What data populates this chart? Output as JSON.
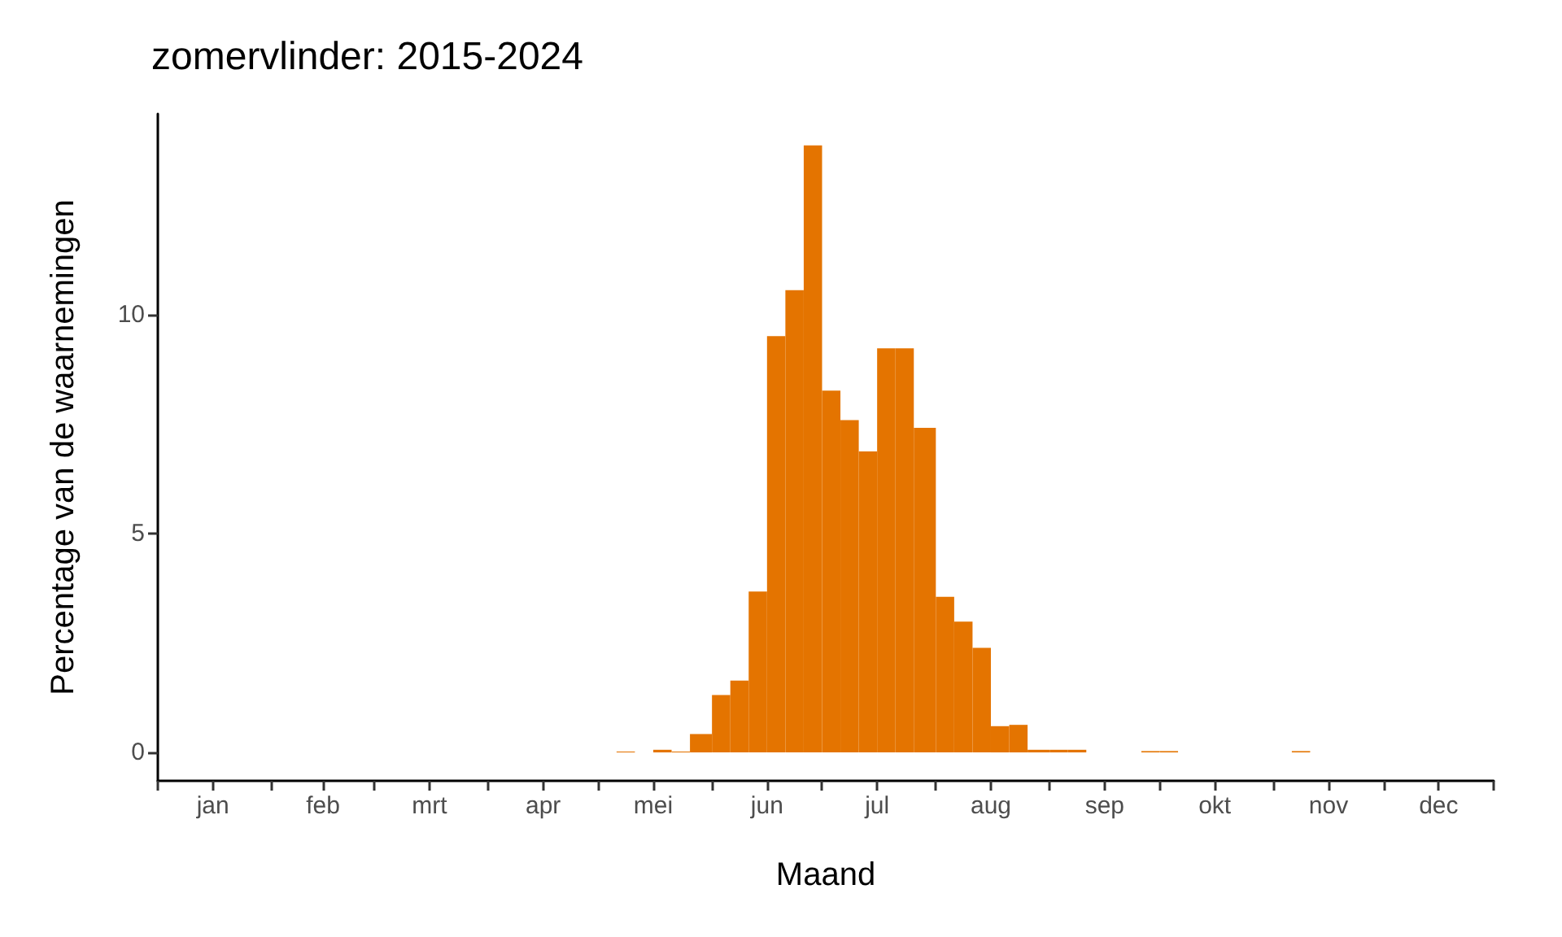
{
  "chart_data": {
    "type": "histogram",
    "title": "zomervlinder: 2015-2024",
    "xlabel": "Maand",
    "ylabel": "Percentage van de waarnemingen",
    "bins": [
      "--05-06",
      "--05-11",
      "--05-16",
      "--05-21",
      "--05-26",
      "--06-01",
      "--06-06",
      "--06-11",
      "--06-16",
      "--06-21",
      "--06-26",
      "--07-01",
      "--07-06",
      "--07-11",
      "--07-16",
      "--07-21",
      "--07-26",
      "--08-01",
      "--08-06",
      "--08-11",
      "--08-16",
      "--08-21",
      "--08-26",
      "--09-01",
      "--09-06",
      "--09-11",
      "--09-26",
      "--10-01",
      "--10-06",
      "--11-06",
      "--11-11"
    ],
    "values": [
      0.02,
      0,
      0.06,
      0.02,
      0.42,
      1.31,
      1.64,
      3.68,
      9.52,
      10.57,
      13.88,
      8.27,
      7.6,
      6.88,
      9.24,
      9.24,
      7.42,
      3.56,
      2.99,
      2.39,
      0.6,
      0.63,
      0.06,
      0.06,
      0.06,
      0,
      0.03,
      0.03,
      0,
      0.03
    ],
    "color": "#e47400",
    "xlim": [
      "--01-01",
      "--12-31"
    ],
    "xticks": [
      {
        "value": "--01-01",
        "label": null
      },
      {
        "value": "--01-16",
        "label": "jan"
      },
      {
        "value": "--02-01",
        "label": null
      },
      {
        "value": "--02-15",
        "label": "feb"
      },
      {
        "value": "--03-01",
        "label": null
      },
      {
        "value": "--03-16",
        "label": "mrt"
      },
      {
        "value": "--04-01",
        "label": null
      },
      {
        "value": "--04-16",
        "label": "apr"
      },
      {
        "value": "--05-01",
        "label": null
      },
      {
        "value": "--05-16",
        "label": "mei"
      },
      {
        "value": "--06-01",
        "label": null
      },
      {
        "value": "--06-16",
        "label": "jun"
      },
      {
        "value": "--07-01",
        "label": null
      },
      {
        "value": "--07-16",
        "label": "jul"
      },
      {
        "value": "--08-01",
        "label": null
      },
      {
        "value": "--08-16",
        "label": "aug"
      },
      {
        "value": "--09-01",
        "label": null
      },
      {
        "value": "--09-16",
        "label": "sep"
      },
      {
        "value": "--10-01",
        "label": null
      },
      {
        "value": "--10-16",
        "label": "okt"
      },
      {
        "value": "--11-01",
        "label": null
      },
      {
        "value": "--11-16",
        "label": "nov"
      },
      {
        "value": "--12-01",
        "label": null
      },
      {
        "value": "--12-16",
        "label": "dec"
      },
      {
        "value": "--12-31",
        "label": null
      }
    ],
    "ylim": [
      -0.65,
      14.6
    ],
    "yticks": [
      0,
      5,
      10
    ]
  }
}
